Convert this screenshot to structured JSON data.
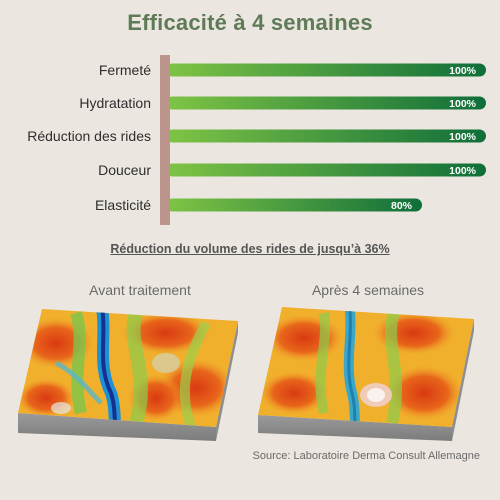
{
  "title": "Efficacité à 4 semaines",
  "subtitle": "Réduction du volume des rides de jusqu’à 36%",
  "images": {
    "before_label": "Avant traitement",
    "after_label": "Après 4 semaines"
  },
  "source": "Source: Laboratoire Derma Consult Allemagne",
  "colors": {
    "title": "#5e7a57",
    "axis": "#bb948c",
    "bar_start": "#7fc445",
    "bar_end": "#0f6e3a",
    "background": "#ebe7e0"
  },
  "chart_data": {
    "type": "bar",
    "orientation": "horizontal",
    "categories": [
      "Fermeté",
      "Hydratation",
      "Réduction des rides",
      "Douceur",
      "Elasticité"
    ],
    "values": [
      100,
      100,
      100,
      100,
      80
    ],
    "value_labels": [
      "100%",
      "100%",
      "100%",
      "100%",
      "80%"
    ],
    "xlim": [
      0,
      100
    ],
    "grid": false,
    "legend": "none"
  }
}
